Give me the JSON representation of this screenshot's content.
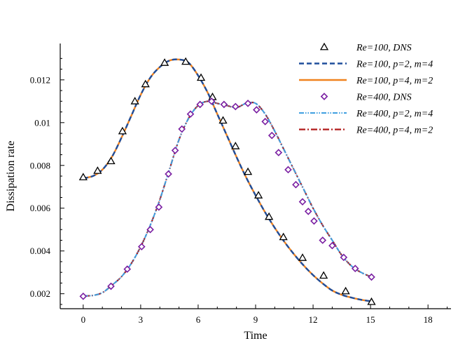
{
  "chart_data": {
    "type": "line",
    "title": "",
    "xlabel": "Time",
    "ylabel": "Dissipation rate",
    "xlim": [
      -1.2,
      19.2
    ],
    "ylim": [
      0.0013,
      0.0137
    ],
    "x_ticks": [
      0,
      3,
      6,
      9,
      12,
      15,
      18
    ],
    "x_tick_labels": [
      "0",
      "3",
      "6",
      "9",
      "12",
      "15",
      "18"
    ],
    "y_ticks": [
      0.002,
      0.004,
      0.006,
      0.008,
      0.01,
      0.012
    ],
    "y_tick_labels": [
      "0.002",
      "0.004",
      "0.006",
      "0.008",
      "0.01",
      "0.012"
    ],
    "grid": false,
    "legend_position": "top-right",
    "colors": {
      "dns_re100": "#000000",
      "dns_re400": "#7a1fa2",
      "re100_p2m4": "#1f4e9c",
      "re100_p4m2": "#f0821e",
      "re400_p2m4": "#3f9fe0",
      "re400_p4m2": "#b01818"
    },
    "series": [
      {
        "name": "Re=100, DNS",
        "style": "marker-triangle",
        "color": "#000000",
        "x": [
          0,
          0.75,
          1.45,
          2.05,
          2.7,
          3.25,
          4.25,
          5.35,
          6.15,
          6.75,
          7.3,
          7.95,
          8.6,
          9.15,
          9.7,
          10.45,
          11.45,
          12.55,
          13.7,
          15.05
        ],
        "y": [
          0.00745,
          0.00775,
          0.0082,
          0.0096,
          0.011,
          0.0118,
          0.0128,
          0.01285,
          0.0121,
          0.0112,
          0.0101,
          0.0089,
          0.0077,
          0.0066,
          0.0056,
          0.00465,
          0.00368,
          0.00285,
          0.00212,
          0.00162
        ]
      },
      {
        "name": "Re=100, p=2, m=4",
        "style": "dashed",
        "color": "#1f4e9c",
        "x": [
          0,
          0.5,
          1,
          1.5,
          2,
          2.5,
          3,
          3.5,
          4,
          4.5,
          5,
          5.5,
          6,
          6.5,
          7,
          7.5,
          8,
          8.5,
          9,
          9.5,
          10,
          10.5,
          11,
          11.5,
          12,
          12.5,
          13,
          13.5,
          14,
          14.5,
          15
        ],
        "y": [
          0.0074,
          0.0075,
          0.0078,
          0.0084,
          0.0093,
          0.0103,
          0.0113,
          0.0121,
          0.0126,
          0.0129,
          0.01295,
          0.0128,
          0.0122,
          0.0114,
          0.0104,
          0.0094,
          0.0084,
          0.00745,
          0.0066,
          0.0058,
          0.00508,
          0.00443,
          0.00385,
          0.00333,
          0.00287,
          0.00248,
          0.00215,
          0.00195,
          0.00182,
          0.00172,
          0.00165
        ]
      },
      {
        "name": "Re=100, p=4, m=2",
        "style": "solid",
        "color": "#f0821e",
        "x": [
          0,
          0.5,
          1,
          1.5,
          2,
          2.5,
          3,
          3.5,
          4,
          4.5,
          5,
          5.5,
          6,
          6.5,
          7,
          7.5,
          8,
          8.5,
          9,
          9.5,
          10,
          10.5,
          11,
          11.5,
          12,
          12.5,
          13,
          13.5,
          14,
          14.5,
          15
        ],
        "y": [
          0.0074,
          0.0075,
          0.0078,
          0.0084,
          0.0093,
          0.0103,
          0.0113,
          0.0121,
          0.0126,
          0.0129,
          0.01295,
          0.0128,
          0.0122,
          0.0114,
          0.0104,
          0.0094,
          0.0084,
          0.00745,
          0.0066,
          0.0058,
          0.00508,
          0.00443,
          0.00385,
          0.00333,
          0.00287,
          0.00248,
          0.00215,
          0.00195,
          0.00182,
          0.00172,
          0.00165
        ]
      },
      {
        "name": "Re=400, DNS",
        "style": "marker-diamond",
        "color": "#7a1fa2",
        "x": [
          0,
          1.45,
          2.3,
          3.05,
          3.5,
          3.95,
          4.45,
          4.8,
          5.15,
          5.6,
          6.1,
          6.7,
          7.35,
          7.95,
          8.6,
          9.05,
          9.5,
          9.85,
          10.2,
          10.7,
          11.1,
          11.45,
          11.75,
          12.05,
          12.5,
          13,
          13.6,
          14.2,
          15.05
        ],
        "y": [
          0.00188,
          0.00235,
          0.00315,
          0.0042,
          0.005,
          0.00605,
          0.0076,
          0.0087,
          0.0097,
          0.0104,
          0.01085,
          0.011,
          0.01085,
          0.01075,
          0.0109,
          0.0106,
          0.01005,
          0.0094,
          0.0086,
          0.0078,
          0.0071,
          0.0063,
          0.00585,
          0.0054,
          0.0045,
          0.00425,
          0.0037,
          0.00318,
          0.00278
        ]
      },
      {
        "name": "Re=400, p=2, m=4",
        "style": "dash-dot-dot",
        "color": "#3f9fe0",
        "x": [
          0,
          0.5,
          1,
          1.5,
          2,
          2.5,
          3,
          3.5,
          4,
          4.5,
          5,
          5.5,
          6,
          6.5,
          7,
          7.5,
          8,
          8.5,
          9,
          9.5,
          10,
          10.5,
          11,
          11.5,
          12,
          12.5,
          13,
          13.5,
          14,
          14.5,
          15
        ],
        "y": [
          0.0019,
          0.00192,
          0.00205,
          0.0024,
          0.0028,
          0.0034,
          0.0042,
          0.0052,
          0.0064,
          0.0078,
          0.0092,
          0.0102,
          0.0108,
          0.011,
          0.0109,
          0.0108,
          0.0107,
          0.0109,
          0.0109,
          0.0104,
          0.0096,
          0.0087,
          0.0078,
          0.0069,
          0.006,
          0.0052,
          0.0045,
          0.0038,
          0.0033,
          0.003,
          0.0028
        ]
      },
      {
        "name": "Re=400, p=4, m=2",
        "style": "dash-dot",
        "color": "#b01818",
        "x": [
          0,
          0.5,
          1,
          1.5,
          2,
          2.5,
          3,
          3.5,
          4,
          4.5,
          5,
          5.5,
          6,
          6.5,
          7,
          7.5,
          8,
          8.5,
          9,
          9.5,
          10,
          10.5,
          11,
          11.5,
          12,
          12.5,
          13,
          13.5,
          14,
          14.5,
          15
        ],
        "y": [
          0.0019,
          0.00192,
          0.00205,
          0.0024,
          0.0028,
          0.0034,
          0.0042,
          0.0052,
          0.0064,
          0.0078,
          0.0092,
          0.0102,
          0.0108,
          0.011,
          0.0109,
          0.0108,
          0.0107,
          0.0109,
          0.0109,
          0.0104,
          0.0096,
          0.0087,
          0.0078,
          0.0069,
          0.006,
          0.0052,
          0.0045,
          0.0038,
          0.0033,
          0.003,
          0.0028
        ]
      }
    ]
  }
}
